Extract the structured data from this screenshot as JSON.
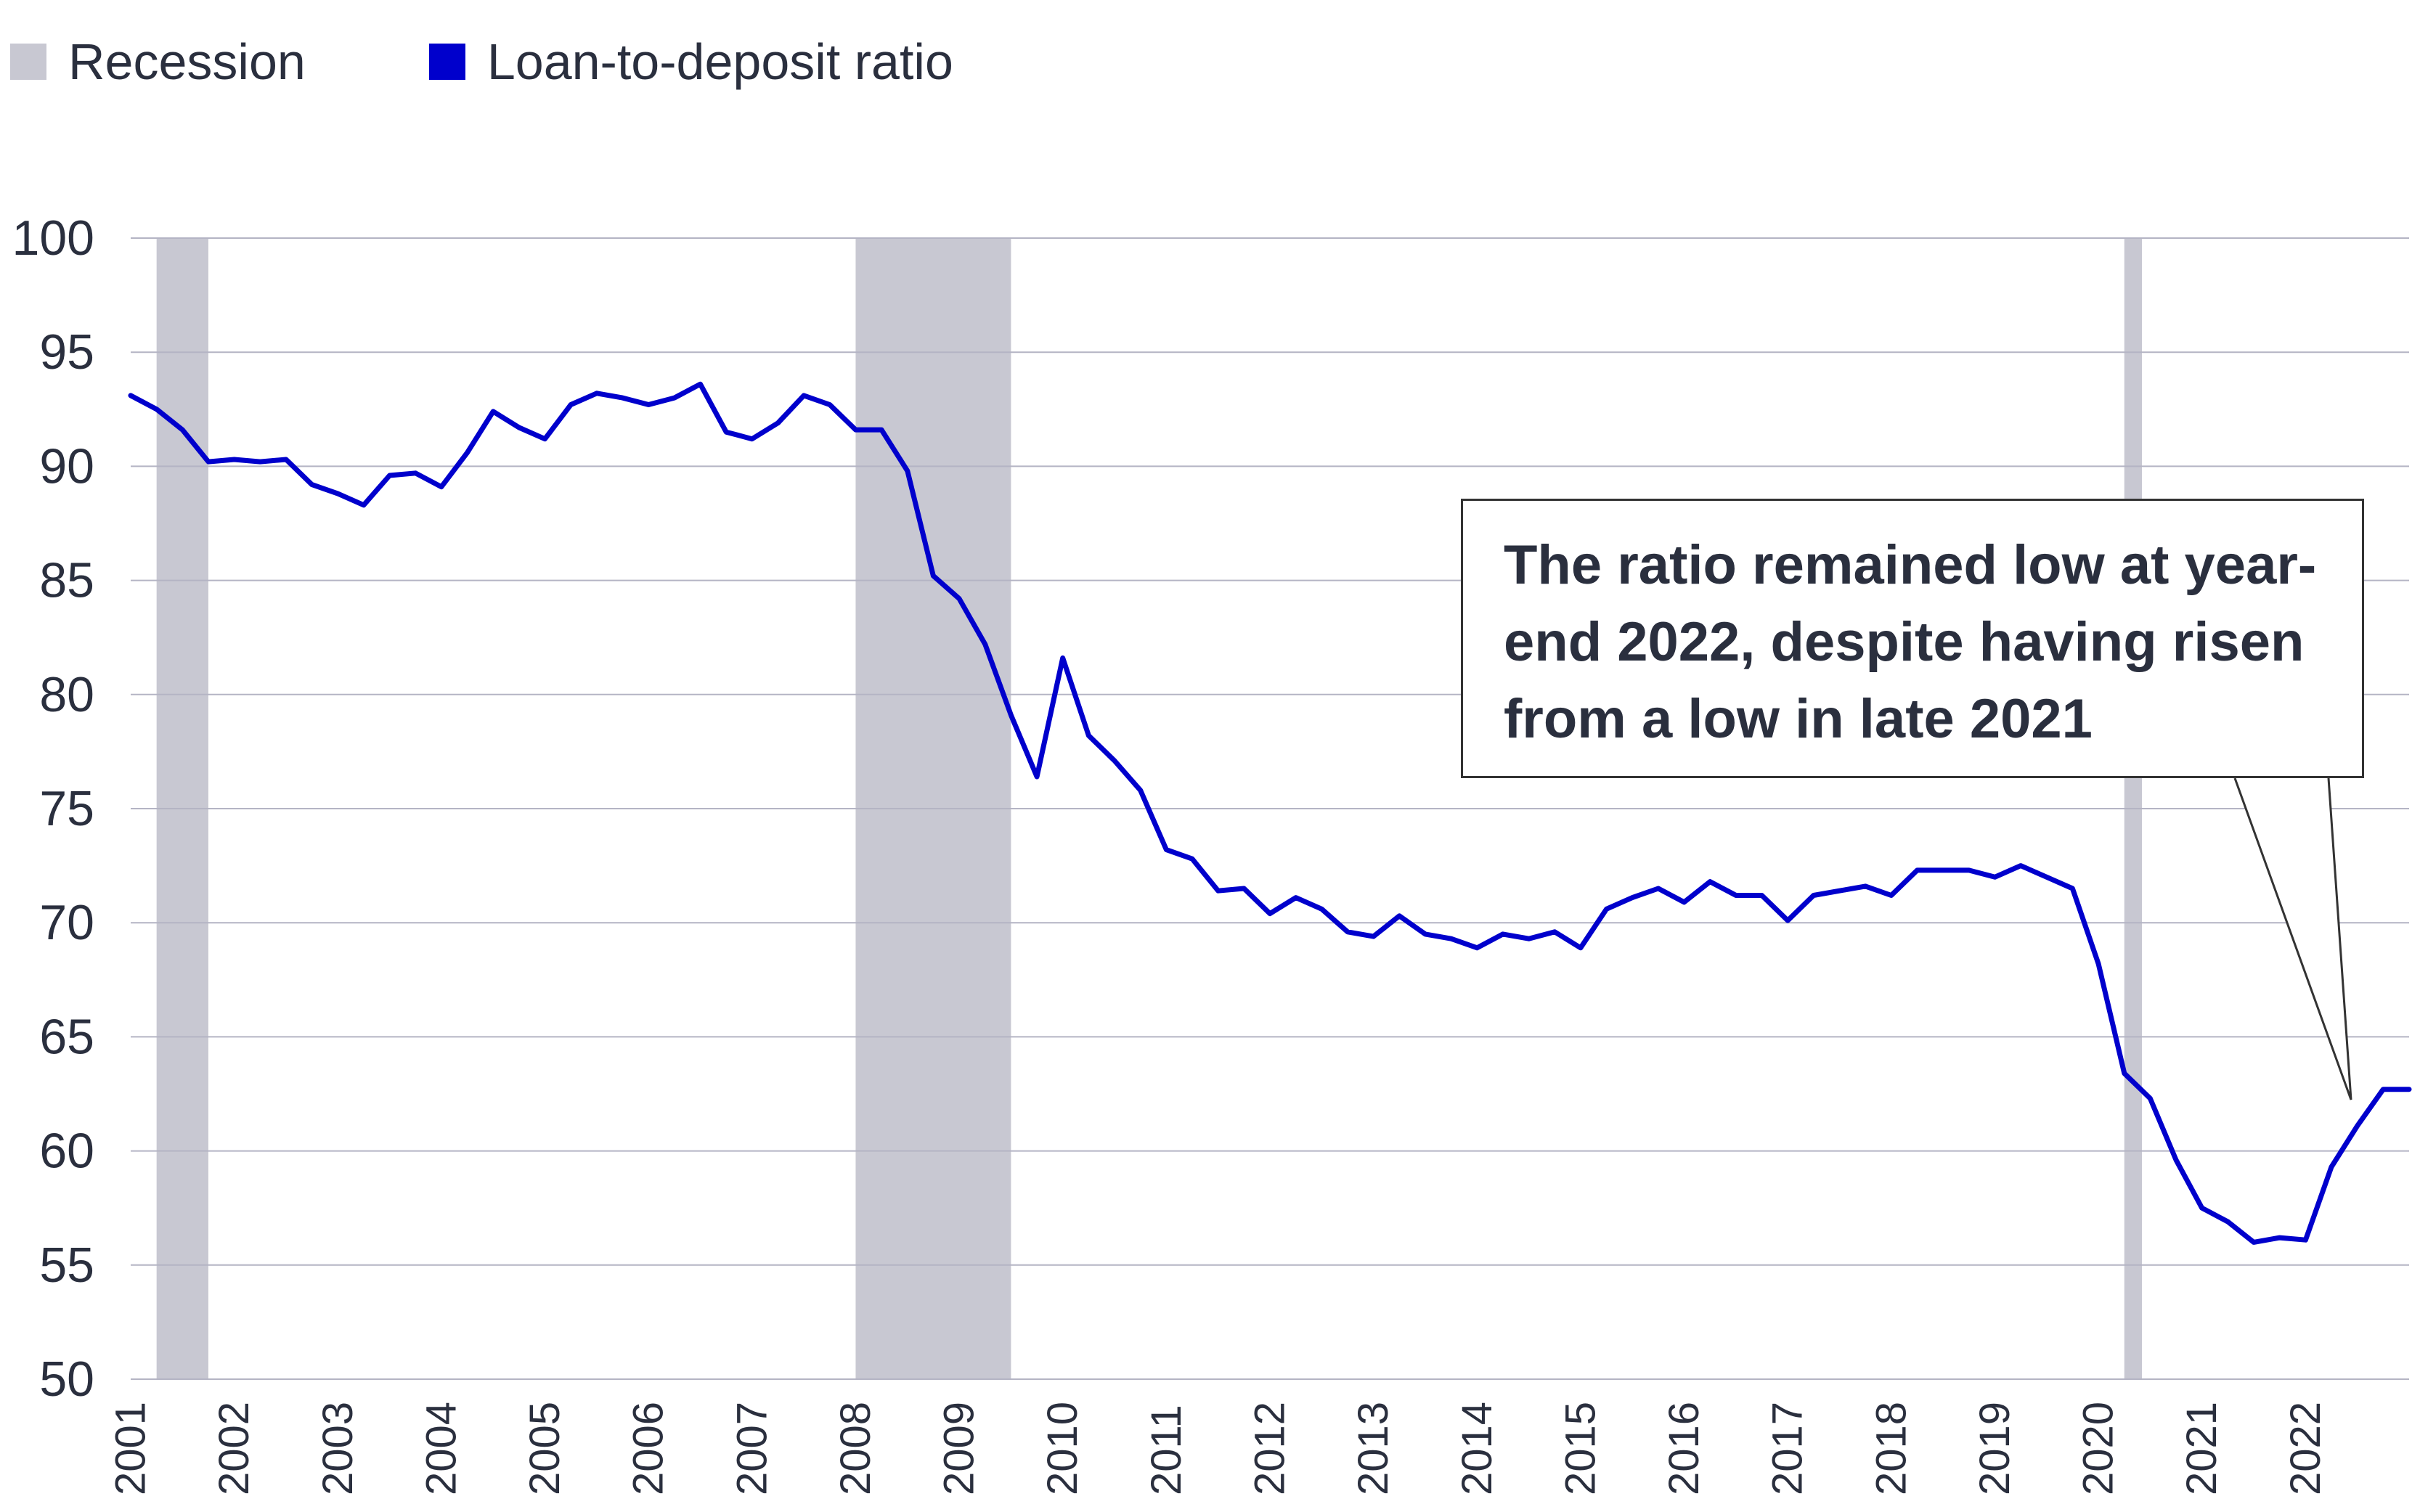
{
  "legend": {
    "recession_label": "Recession",
    "series_label": "Loan-to-deposit ratio",
    "recession_color": "#c8c8d2",
    "series_color": "#0000cc"
  },
  "annotation": {
    "text": "The ratio remained low at year-end 2022, despite having risen from a low in late 2021"
  },
  "chart_data": {
    "type": "line",
    "title": "",
    "xlabel": "",
    "ylabel": "",
    "ylim": [
      50,
      100
    ],
    "yticks": [
      50,
      55,
      60,
      65,
      70,
      75,
      80,
      85,
      90,
      95,
      100
    ],
    "xlim": [
      2001.0,
      2023.0
    ],
    "xticks": [
      "2001",
      "2002",
      "2003",
      "2004",
      "2005",
      "2006",
      "2007",
      "2008",
      "2009",
      "2010",
      "2011",
      "2012",
      "2013",
      "2014",
      "2015",
      "2016",
      "2017",
      "2018",
      "2019",
      "2020",
      "2021",
      "2022"
    ],
    "grid": true,
    "legend_position": "top-left",
    "recessions": [
      {
        "start": 2001.25,
        "end": 2001.75
      },
      {
        "start": 2008.0,
        "end": 2009.5
      },
      {
        "start": 2020.25,
        "end": 2020.42
      }
    ],
    "series": [
      {
        "name": "Loan-to-deposit ratio",
        "x": [
          2001.0,
          2001.25,
          2001.5,
          2001.75,
          2002.0,
          2002.25,
          2002.5,
          2002.75,
          2003.0,
          2003.25,
          2003.5,
          2003.75,
          2004.0,
          2004.25,
          2004.5,
          2004.75,
          2005.0,
          2005.25,
          2005.5,
          2005.75,
          2006.0,
          2006.25,
          2006.5,
          2006.75,
          2007.0,
          2007.25,
          2007.5,
          2007.75,
          2008.0,
          2008.25,
          2008.5,
          2008.75,
          2009.0,
          2009.25,
          2009.5,
          2009.75,
          2010.0,
          2010.25,
          2010.5,
          2010.75,
          2011.0,
          2011.25,
          2011.5,
          2011.75,
          2012.0,
          2012.25,
          2012.5,
          2012.75,
          2013.0,
          2013.25,
          2013.5,
          2013.75,
          2014.0,
          2014.25,
          2014.5,
          2014.75,
          2015.0,
          2015.25,
          2015.5,
          2015.75,
          2016.0,
          2016.25,
          2016.5,
          2016.75,
          2017.0,
          2017.25,
          2017.5,
          2017.75,
          2018.0,
          2018.25,
          2018.5,
          2018.75,
          2019.0,
          2019.25,
          2019.5,
          2019.75,
          2020.0,
          2020.25,
          2020.5,
          2020.75,
          2021.0,
          2021.25,
          2021.5,
          2021.75,
          2022.0,
          2022.25,
          2022.5,
          2022.75,
          2023.0
        ],
        "values": [
          93.1,
          92.5,
          91.6,
          90.2,
          90.3,
          90.2,
          90.3,
          89.2,
          88.8,
          88.3,
          89.6,
          89.7,
          89.1,
          90.6,
          92.4,
          91.7,
          91.2,
          92.7,
          93.2,
          93.0,
          92.7,
          93.0,
          93.6,
          91.5,
          91.2,
          91.9,
          93.1,
          92.7,
          91.6,
          91.6,
          89.8,
          85.2,
          84.2,
          82.2,
          79.1,
          76.4,
          81.6,
          78.2,
          77.1,
          75.8,
          73.2,
          72.8,
          71.4,
          71.5,
          70.4,
          71.1,
          70.6,
          69.6,
          69.4,
          70.3,
          69.5,
          69.3,
          68.9,
          69.5,
          69.3,
          69.6,
          68.9,
          70.6,
          71.1,
          71.5,
          70.9,
          71.8,
          71.2,
          71.2,
          70.1,
          71.2,
          71.4,
          71.6,
          71.2,
          72.3,
          72.3,
          72.3,
          72.0,
          72.5,
          72.0,
          71.5,
          68.2,
          63.4,
          62.3,
          59.6,
          57.5,
          56.9,
          56.0,
          56.2,
          56.1,
          59.3,
          61.1,
          62.7,
          62.7
        ]
      }
    ]
  }
}
